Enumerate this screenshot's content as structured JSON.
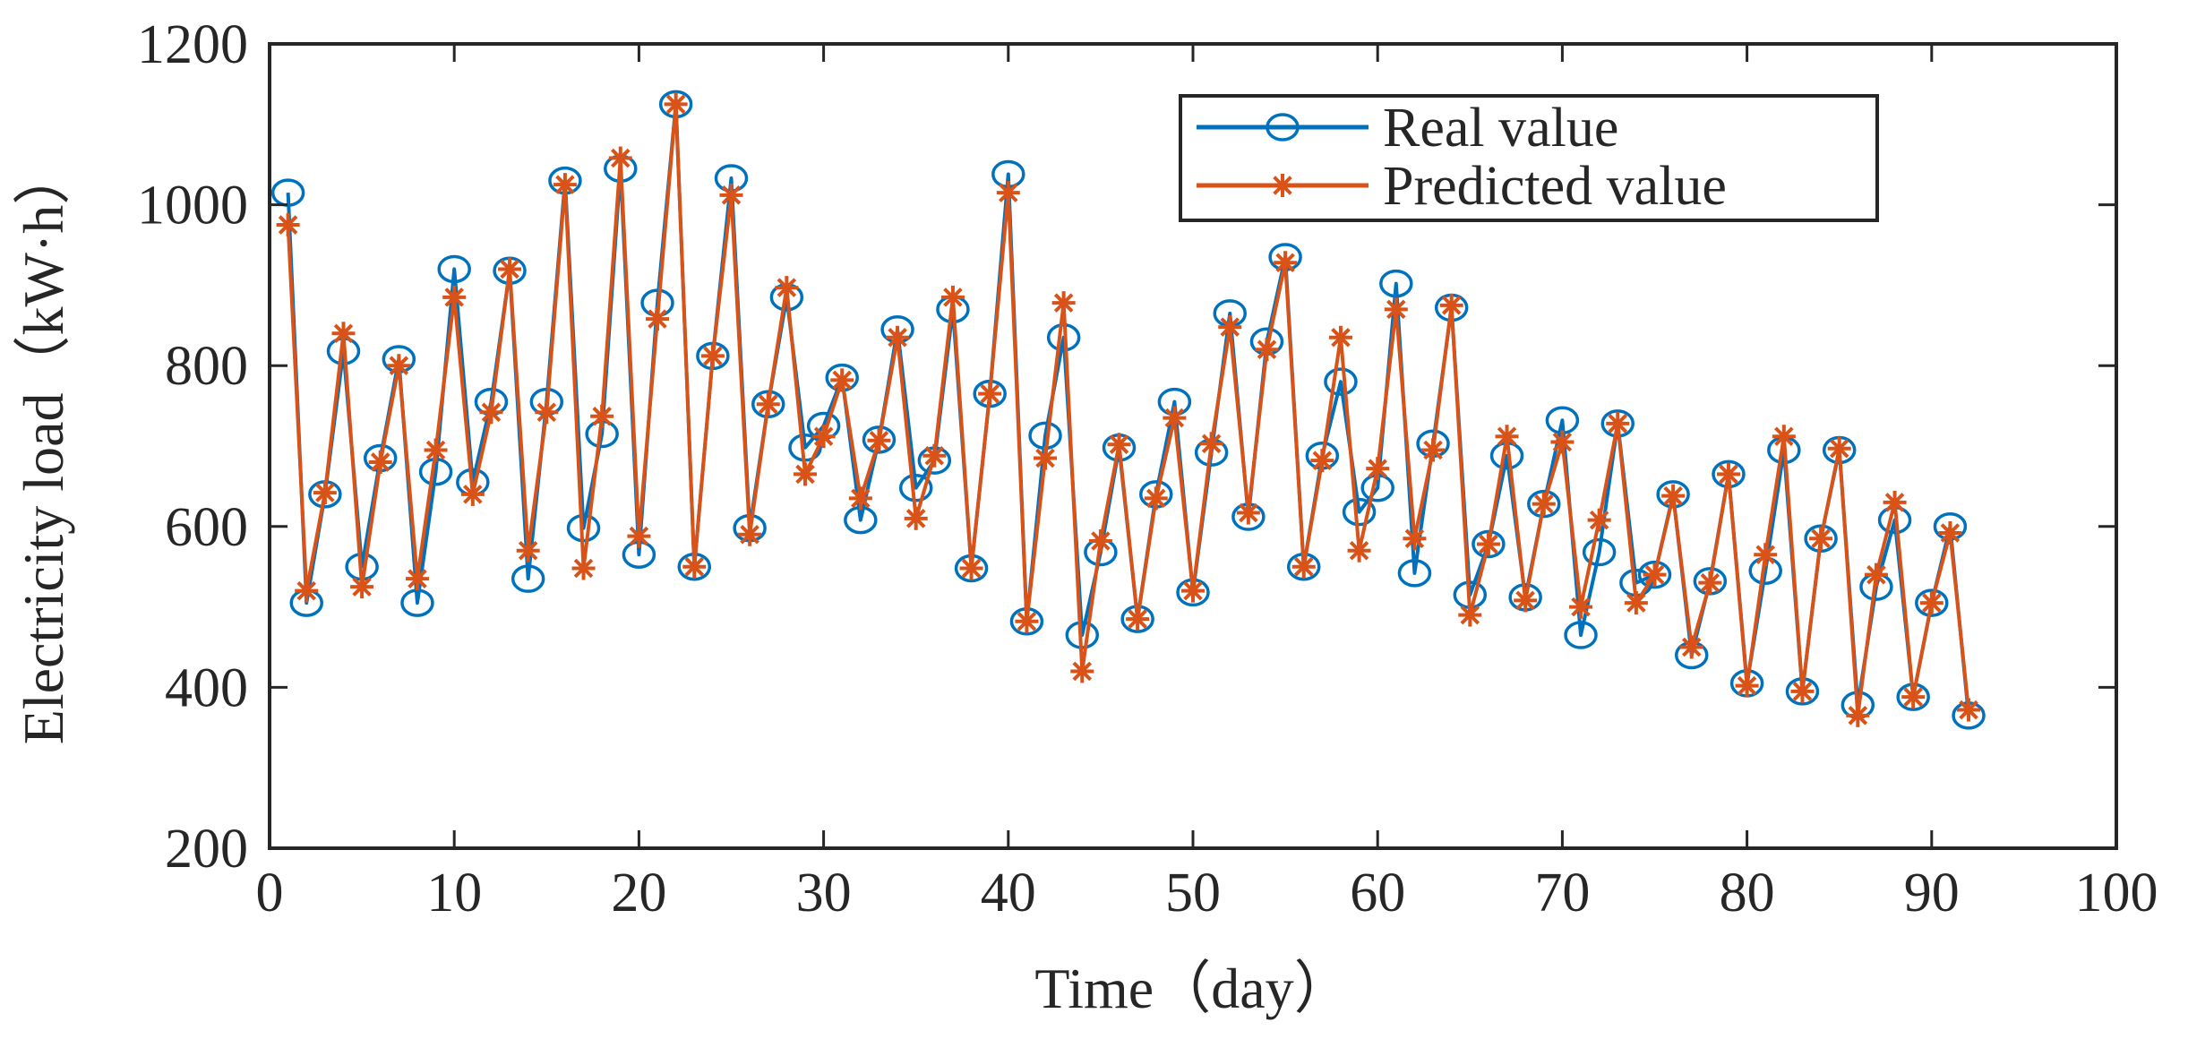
{
  "chart_data": {
    "type": "line",
    "title": "",
    "xlabel": "Time（day）",
    "ylabel": "Electricity load（kW·h）",
    "xlim": [
      0,
      100
    ],
    "ylim": [
      200,
      1200
    ],
    "xticks": [
      0,
      10,
      20,
      30,
      40,
      50,
      60,
      70,
      80,
      90,
      100
    ],
    "yticks": [
      200,
      400,
      600,
      800,
      1000,
      1200
    ],
    "grid": false,
    "legend_position": "top-right",
    "x": [
      1,
      2,
      3,
      4,
      5,
      6,
      7,
      8,
      9,
      10,
      11,
      12,
      13,
      14,
      15,
      16,
      17,
      18,
      19,
      20,
      21,
      22,
      23,
      24,
      25,
      26,
      27,
      28,
      29,
      30,
      31,
      32,
      33,
      34,
      35,
      36,
      37,
      38,
      39,
      40,
      41,
      42,
      43,
      44,
      45,
      46,
      47,
      48,
      49,
      50,
      51,
      52,
      53,
      54,
      55,
      56,
      57,
      58,
      59,
      60,
      61,
      62,
      63,
      64,
      65,
      66,
      67,
      68,
      69,
      70,
      71,
      72,
      73,
      74,
      75,
      76,
      77,
      78,
      79,
      80,
      81,
      82,
      83,
      84,
      85,
      86,
      87,
      88,
      89,
      90,
      91,
      92
    ],
    "series": [
      {
        "name": "Real value",
        "color": "#0072BD",
        "marker": "circle",
        "values": [
          1015,
          505,
          640,
          818,
          550,
          685,
          808,
          505,
          668,
          920,
          655,
          755,
          918,
          535,
          755,
          1030,
          598,
          715,
          1045,
          565,
          878,
          1125,
          550,
          812,
          1033,
          598,
          752,
          885,
          698,
          725,
          785,
          608,
          708,
          845,
          648,
          682,
          870,
          548,
          765,
          1038,
          482,
          713,
          835,
          465,
          568,
          698,
          485,
          640,
          755,
          518,
          692,
          865,
          612,
          830,
          935,
          550,
          688,
          780,
          618,
          648,
          902,
          542,
          703,
          872,
          515,
          578,
          688,
          512,
          628,
          732,
          465,
          568,
          728,
          530,
          540,
          640,
          440,
          532,
          665,
          405,
          545,
          695,
          395,
          585,
          695,
          378,
          525,
          608,
          388,
          505,
          600,
          365
        ]
      },
      {
        "name": "Predicted value",
        "color": "#D95319",
        "marker": "asterisk",
        "values": [
          975,
          520,
          642,
          840,
          525,
          680,
          800,
          535,
          695,
          885,
          640,
          742,
          920,
          570,
          742,
          1025,
          548,
          737,
          1058,
          588,
          858,
          1125,
          550,
          812,
          1012,
          590,
          752,
          897,
          665,
          712,
          782,
          635,
          707,
          835,
          610,
          688,
          885,
          548,
          765,
          1015,
          482,
          685,
          878,
          420,
          582,
          702,
          485,
          635,
          735,
          520,
          703,
          848,
          617,
          820,
          928,
          550,
          682,
          835,
          570,
          672,
          870,
          585,
          695,
          875,
          490,
          578,
          712,
          508,
          628,
          705,
          500,
          608,
          728,
          505,
          540,
          638,
          450,
          530,
          665,
          402,
          565,
          712,
          395,
          585,
          697,
          365,
          540,
          630,
          388,
          505,
          592,
          372
        ]
      }
    ]
  }
}
